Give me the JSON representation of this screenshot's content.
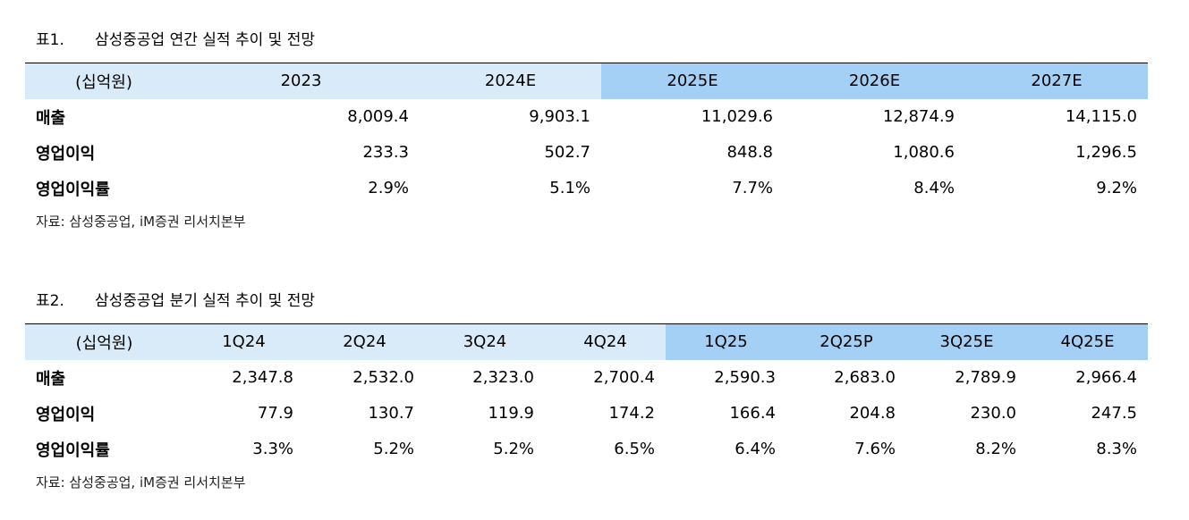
{
  "table1": {
    "label": "표1.",
    "title": "삼성중공업 연간 실적 추이 및 전망",
    "unit": "(십억원)",
    "columns": [
      "2023",
      "2024E",
      "2025E",
      "2026E",
      "2027E"
    ],
    "rows": [
      {
        "label": "매출",
        "values": [
          "8,009.4",
          "9,903.1",
          "11,029.6",
          "12,874.9",
          "14,115.0"
        ]
      },
      {
        "label": "영업이익",
        "values": [
          "233.3",
          "502.7",
          "848.8",
          "1,080.6",
          "1,296.5"
        ]
      },
      {
        "label": "영업이익률",
        "values": [
          "2.9%",
          "5.1%",
          "7.7%",
          "8.4%",
          "9.2%"
        ]
      }
    ],
    "source": "자료: 삼성중공업, iM증권 리서치본부"
  },
  "table2": {
    "label": "표2.",
    "title": "삼성중공업 분기 실적 추이 및 전망",
    "unit": "(십억원)",
    "columns": [
      "1Q24",
      "2Q24",
      "3Q24",
      "4Q24",
      "1Q25",
      "2Q25P",
      "3Q25E",
      "4Q25E"
    ],
    "rows": [
      {
        "label": "매출",
        "values": [
          "2,347.8",
          "2,532.0",
          "2,323.0",
          "2,700.4",
          "2,590.3",
          "2,683.0",
          "2,789.9",
          "2,966.4"
        ]
      },
      {
        "label": "영업이익",
        "values": [
          "77.9",
          "130.7",
          "119.9",
          "174.2",
          "166.4",
          "204.8",
          "230.0",
          "247.5"
        ]
      },
      {
        "label": "영업이익률",
        "values": [
          "3.3%",
          "5.2%",
          "5.2%",
          "6.5%",
          "6.4%",
          "7.6%",
          "8.2%",
          "8.3%"
        ]
      }
    ],
    "source": "자료: 삼성중공업, iM증권 리서치본부"
  },
  "colors": {
    "header_actual": "#d9ebf9",
    "header_forecast": "#a3d0f4"
  }
}
